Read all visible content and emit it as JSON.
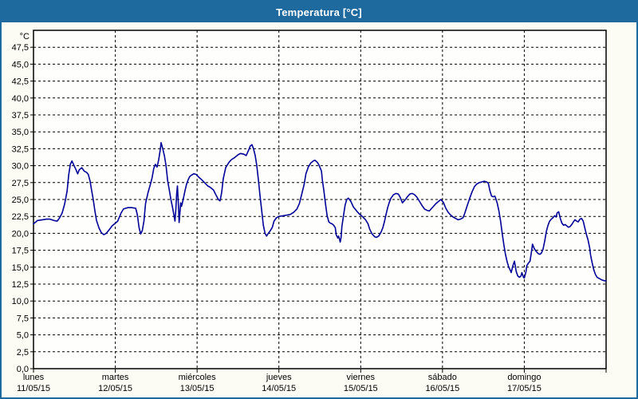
{
  "window": {
    "title": "Temperatura [°C]"
  },
  "colors": {
    "title_bar_bg": "#1e699e",
    "title_text": "#ffffff",
    "window_border": "#1e699e",
    "page_bg": "#fcfcf5",
    "plot_bg": "#fefefc",
    "grid": "#000000",
    "axis": "#000000",
    "line": "#000099"
  },
  "chart_data": {
    "type": "line",
    "title": "Temperatura [°C]",
    "y_unit_label": "°C",
    "ylabel": "",
    "xlabel": "",
    "ylim": [
      0,
      50
    ],
    "y_tick_step": 2.5,
    "grid": "dashed",
    "legend_position": "none",
    "y_ticks": [
      {
        "v": 47.5,
        "label": "47,5"
      },
      {
        "v": 45.0,
        "label": "45,0"
      },
      {
        "v": 42.5,
        "label": "42,5"
      },
      {
        "v": 40.0,
        "label": "40,0"
      },
      {
        "v": 37.5,
        "label": "37,5"
      },
      {
        "v": 35.0,
        "label": "35,0"
      },
      {
        "v": 32.5,
        "label": "32,5"
      },
      {
        "v": 30.0,
        "label": "30,0"
      },
      {
        "v": 27.5,
        "label": "27,5"
      },
      {
        "v": 25.0,
        "label": "25,0"
      },
      {
        "v": 22.5,
        "label": "22,5"
      },
      {
        "v": 20.0,
        "label": "20,0"
      },
      {
        "v": 17.5,
        "label": "17,5"
      },
      {
        "v": 15.0,
        "label": "15,0"
      },
      {
        "v": 12.5,
        "label": "12,5"
      },
      {
        "v": 10.0,
        "label": "10,0"
      },
      {
        "v": 7.5,
        "label": "7,5"
      },
      {
        "v": 5.0,
        "label": "5,0"
      },
      {
        "v": 2.5,
        "label": "2,5"
      },
      {
        "v": 0.0,
        "label": "0,0"
      }
    ],
    "x_days": 7,
    "x_ticks": [
      {
        "day_name": "lunes",
        "date": "11/05/15"
      },
      {
        "day_name": "martes",
        "date": "12/05/15"
      },
      {
        "day_name": "miércoles",
        "date": "13/05/15"
      },
      {
        "day_name": "jueves",
        "date": "14/05/15"
      },
      {
        "day_name": "viernes",
        "date": "15/05/15"
      },
      {
        "day_name": "sábado",
        "date": "16/05/15"
      },
      {
        "day_name": "domingo",
        "date": "17/05/15"
      }
    ],
    "series": [
      {
        "name": "Temperatura",
        "color": "#000099",
        "points": [
          [
            0.0,
            21.4
          ],
          [
            0.05,
            21.9
          ],
          [
            0.11,
            22.0
          ],
          [
            0.16,
            22.1
          ],
          [
            0.2,
            22.1
          ],
          [
            0.25,
            21.9
          ],
          [
            0.29,
            21.8
          ],
          [
            0.32,
            22.3
          ],
          [
            0.35,
            23.0
          ],
          [
            0.38,
            24.3
          ],
          [
            0.41,
            26.2
          ],
          [
            0.43,
            28.6
          ],
          [
            0.45,
            30.2
          ],
          [
            0.47,
            30.7
          ],
          [
            0.5,
            29.9
          ],
          [
            0.52,
            29.4
          ],
          [
            0.54,
            28.8
          ],
          [
            0.56,
            29.4
          ],
          [
            0.59,
            29.7
          ],
          [
            0.62,
            29.2
          ],
          [
            0.65,
            29.0
          ],
          [
            0.67,
            28.7
          ],
          [
            0.69,
            27.8
          ],
          [
            0.71,
            26.4
          ],
          [
            0.73,
            25.0
          ],
          [
            0.75,
            23.4
          ],
          [
            0.77,
            21.9
          ],
          [
            0.8,
            20.8
          ],
          [
            0.83,
            20.1
          ],
          [
            0.86,
            19.8
          ],
          [
            0.89,
            20.0
          ],
          [
            0.93,
            20.6
          ],
          [
            0.96,
            21.1
          ],
          [
            1.0,
            21.5
          ],
          [
            1.03,
            21.8
          ],
          [
            1.07,
            23.0
          ],
          [
            1.1,
            23.6
          ],
          [
            1.15,
            23.8
          ],
          [
            1.2,
            23.8
          ],
          [
            1.25,
            23.7
          ],
          [
            1.27,
            22.7
          ],
          [
            1.29,
            20.9
          ],
          [
            1.31,
            19.9
          ],
          [
            1.33,
            20.4
          ],
          [
            1.35,
            21.8
          ],
          [
            1.37,
            24.4
          ],
          [
            1.4,
            26.0
          ],
          [
            1.43,
            27.3
          ],
          [
            1.45,
            28.2
          ],
          [
            1.47,
            29.6
          ],
          [
            1.49,
            30.2
          ],
          [
            1.51,
            29.8
          ],
          [
            1.53,
            30.8
          ],
          [
            1.55,
            32.4
          ],
          [
            1.56,
            33.4
          ],
          [
            1.58,
            32.5
          ],
          [
            1.6,
            31.5
          ],
          [
            1.62,
            30.0
          ],
          [
            1.64,
            27.8
          ],
          [
            1.66,
            26.4
          ],
          [
            1.68,
            25.0
          ],
          [
            1.7,
            23.8
          ],
          [
            1.72,
            22.5
          ],
          [
            1.73,
            21.8
          ],
          [
            1.74,
            23.5
          ],
          [
            1.75,
            25.8
          ],
          [
            1.76,
            27.0
          ],
          [
            1.77,
            24.5
          ],
          [
            1.78,
            21.6
          ],
          [
            1.79,
            23.0
          ],
          [
            1.8,
            24.5
          ],
          [
            1.81,
            24.0
          ],
          [
            1.83,
            25.0
          ],
          [
            1.85,
            26.2
          ],
          [
            1.87,
            27.2
          ],
          [
            1.89,
            27.9
          ],
          [
            1.91,
            28.4
          ],
          [
            1.93,
            28.6
          ],
          [
            1.96,
            28.8
          ],
          [
            1.99,
            28.7
          ],
          [
            2.02,
            28.3
          ],
          [
            2.05,
            28.0
          ],
          [
            2.09,
            27.5
          ],
          [
            2.13,
            27.0
          ],
          [
            2.16,
            26.8
          ],
          [
            2.2,
            26.4
          ],
          [
            2.23,
            25.7
          ],
          [
            2.26,
            25.0
          ],
          [
            2.28,
            24.8
          ],
          [
            2.3,
            26.0
          ],
          [
            2.32,
            28.1
          ],
          [
            2.35,
            29.7
          ],
          [
            2.39,
            30.5
          ],
          [
            2.42,
            30.9
          ],
          [
            2.46,
            31.2
          ],
          [
            2.5,
            31.6
          ],
          [
            2.53,
            31.8
          ],
          [
            2.57,
            31.7
          ],
          [
            2.6,
            31.5
          ],
          [
            2.63,
            32.3
          ],
          [
            2.65,
            32.9
          ],
          [
            2.67,
            33.1
          ],
          [
            2.69,
            32.5
          ],
          [
            2.71,
            31.5
          ],
          [
            2.73,
            30.0
          ],
          [
            2.75,
            27.8
          ],
          [
            2.77,
            25.5
          ],
          [
            2.79,
            23.3
          ],
          [
            2.81,
            21.2
          ],
          [
            2.83,
            20.0
          ],
          [
            2.85,
            19.6
          ],
          [
            2.87,
            20.0
          ],
          [
            2.89,
            20.3
          ],
          [
            2.92,
            20.9
          ],
          [
            2.94,
            21.8
          ],
          [
            2.97,
            22.3
          ],
          [
            3.0,
            22.5
          ],
          [
            3.05,
            22.6
          ],
          [
            3.1,
            22.7
          ],
          [
            3.14,
            22.8
          ],
          [
            3.18,
            23.1
          ],
          [
            3.22,
            23.6
          ],
          [
            3.25,
            24.4
          ],
          [
            3.28,
            25.8
          ],
          [
            3.31,
            27.3
          ],
          [
            3.33,
            28.8
          ],
          [
            3.36,
            29.8
          ],
          [
            3.39,
            30.4
          ],
          [
            3.42,
            30.7
          ],
          [
            3.44,
            30.8
          ],
          [
            3.47,
            30.5
          ],
          [
            3.49,
            30.1
          ],
          [
            3.52,
            29.2
          ],
          [
            3.53,
            28.0
          ],
          [
            3.55,
            26.3
          ],
          [
            3.57,
            24.3
          ],
          [
            3.59,
            22.6
          ],
          [
            3.61,
            21.7
          ],
          [
            3.63,
            21.5
          ],
          [
            3.65,
            21.4
          ],
          [
            3.67,
            21.2
          ],
          [
            3.69,
            20.8
          ],
          [
            3.7,
            19.8
          ],
          [
            3.72,
            19.3
          ],
          [
            3.73,
            19.6
          ],
          [
            3.74,
            19.2
          ],
          [
            3.75,
            18.7
          ],
          [
            3.76,
            19.4
          ],
          [
            3.77,
            21.0
          ],
          [
            3.79,
            22.6
          ],
          [
            3.81,
            24.2
          ],
          [
            3.83,
            25.0
          ],
          [
            3.85,
            25.2
          ],
          [
            3.88,
            24.7
          ],
          [
            3.91,
            23.9
          ],
          [
            3.95,
            23.3
          ],
          [
            3.98,
            22.9
          ],
          [
            4.02,
            22.5
          ],
          [
            4.06,
            22.0
          ],
          [
            4.09,
            21.4
          ],
          [
            4.11,
            20.6
          ],
          [
            4.14,
            19.9
          ],
          [
            4.17,
            19.5
          ],
          [
            4.19,
            19.4
          ],
          [
            4.22,
            19.6
          ],
          [
            4.25,
            20.2
          ],
          [
            4.27,
            20.8
          ],
          [
            4.29,
            21.7
          ],
          [
            4.31,
            22.8
          ],
          [
            4.33,
            23.8
          ],
          [
            4.35,
            24.6
          ],
          [
            4.37,
            25.2
          ],
          [
            4.4,
            25.7
          ],
          [
            4.43,
            25.9
          ],
          [
            4.46,
            25.8
          ],
          [
            4.48,
            25.4
          ],
          [
            4.51,
            24.5
          ],
          [
            4.54,
            24.9
          ],
          [
            4.57,
            25.4
          ],
          [
            4.6,
            25.8
          ],
          [
            4.63,
            25.9
          ],
          [
            4.66,
            25.7
          ],
          [
            4.69,
            25.3
          ],
          [
            4.72,
            24.7
          ],
          [
            4.75,
            24.1
          ],
          [
            4.78,
            23.6
          ],
          [
            4.81,
            23.4
          ],
          [
            4.84,
            23.3
          ],
          [
            4.86,
            23.6
          ],
          [
            4.89,
            24.0
          ],
          [
            4.92,
            24.4
          ],
          [
            4.95,
            24.7
          ],
          [
            4.98,
            25.0
          ],
          [
            5.01,
            24.6
          ],
          [
            5.04,
            23.7
          ],
          [
            5.07,
            23.1
          ],
          [
            5.1,
            22.7
          ],
          [
            5.13,
            22.4
          ],
          [
            5.16,
            22.2
          ],
          [
            5.19,
            22.0
          ],
          [
            5.22,
            22.1
          ],
          [
            5.25,
            22.3
          ],
          [
            5.27,
            22.9
          ],
          [
            5.3,
            24.0
          ],
          [
            5.33,
            25.1
          ],
          [
            5.36,
            26.1
          ],
          [
            5.39,
            26.9
          ],
          [
            5.42,
            27.3
          ],
          [
            5.45,
            27.5
          ],
          [
            5.48,
            27.6
          ],
          [
            5.51,
            27.7
          ],
          [
            5.54,
            27.6
          ],
          [
            5.56,
            27.4
          ],
          [
            5.58,
            26.3
          ],
          [
            5.6,
            25.5
          ],
          [
            5.62,
            25.4
          ],
          [
            5.64,
            25.5
          ],
          [
            5.65,
            25.2
          ],
          [
            5.67,
            24.4
          ],
          [
            5.69,
            23.3
          ],
          [
            5.71,
            21.8
          ],
          [
            5.73,
            20.0
          ],
          [
            5.75,
            18.3
          ],
          [
            5.77,
            16.9
          ],
          [
            5.79,
            15.8
          ],
          [
            5.81,
            15.0
          ],
          [
            5.83,
            14.5
          ],
          [
            5.84,
            14.2
          ],
          [
            5.86,
            15.2
          ],
          [
            5.88,
            15.9
          ],
          [
            5.9,
            14.4
          ],
          [
            5.92,
            13.7
          ],
          [
            5.94,
            13.5
          ],
          [
            5.96,
            13.7
          ],
          [
            5.97,
            14.2
          ],
          [
            5.99,
            13.5
          ],
          [
            6.0,
            13.4
          ],
          [
            6.02,
            14.3
          ],
          [
            6.03,
            15.2
          ],
          [
            6.05,
            15.6
          ],
          [
            6.07,
            15.9
          ],
          [
            6.09,
            17.5
          ],
          [
            6.1,
            18.4
          ],
          [
            6.12,
            17.8
          ],
          [
            6.14,
            17.4
          ],
          [
            6.17,
            17.0
          ],
          [
            6.19,
            16.9
          ],
          [
            6.21,
            17.1
          ],
          [
            6.23,
            17.7
          ],
          [
            6.25,
            18.9
          ],
          [
            6.27,
            20.3
          ],
          [
            6.29,
            21.2
          ],
          [
            6.31,
            21.8
          ],
          [
            6.33,
            22.1
          ],
          [
            6.35,
            22.3
          ],
          [
            6.37,
            22.6
          ],
          [
            6.39,
            22.4
          ],
          [
            6.4,
            23.0
          ],
          [
            6.42,
            23.2
          ],
          [
            6.44,
            22.2
          ],
          [
            6.46,
            21.5
          ],
          [
            6.48,
            21.2
          ],
          [
            6.5,
            21.3
          ],
          [
            6.52,
            21.1
          ],
          [
            6.54,
            20.9
          ],
          [
            6.56,
            21.0
          ],
          [
            6.58,
            21.3
          ],
          [
            6.6,
            21.7
          ],
          [
            6.62,
            22.0
          ],
          [
            6.64,
            21.8
          ],
          [
            6.66,
            21.7
          ],
          [
            6.68,
            22.1
          ],
          [
            6.7,
            22.2
          ],
          [
            6.72,
            21.8
          ],
          [
            6.74,
            20.8
          ],
          [
            6.76,
            19.8
          ],
          [
            6.78,
            19.0
          ],
          [
            6.8,
            17.8
          ],
          [
            6.81,
            16.8
          ],
          [
            6.83,
            15.6
          ],
          [
            6.85,
            14.6
          ],
          [
            6.87,
            13.9
          ],
          [
            6.89,
            13.5
          ],
          [
            6.92,
            13.3
          ],
          [
            6.95,
            13.1
          ],
          [
            6.98,
            13.0
          ],
          [
            7.0,
            13.0
          ]
        ]
      }
    ]
  }
}
